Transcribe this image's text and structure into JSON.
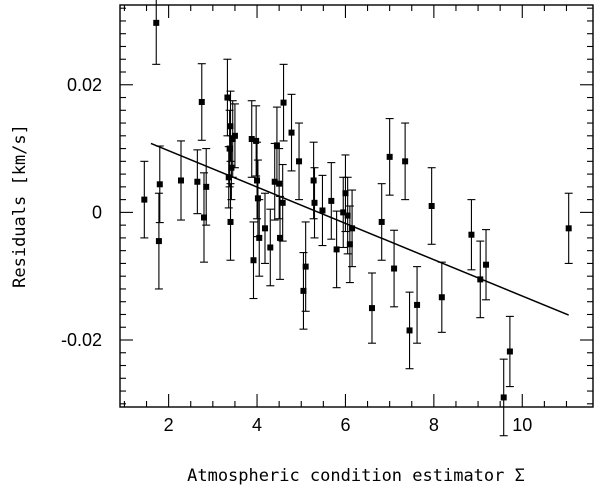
{
  "chart_data": {
    "type": "scatter",
    "title": "",
    "xlabel": "Atmospheric condition estimator Σ",
    "ylabel": "Residuals [km/s]",
    "xlim": [
      0.9,
      11.6
    ],
    "ylim": [
      -0.0305,
      0.0325
    ],
    "x_ticks": [
      2,
      4,
      6,
      8,
      10
    ],
    "x_tick_labels": [
      "2",
      "4",
      "6",
      "8",
      "10"
    ],
    "y_ticks": [
      -0.02,
      0,
      0.02
    ],
    "y_tick_labels": [
      "-0.02",
      "0",
      "0.02"
    ],
    "grid": false,
    "legend": "none",
    "fit_line": {
      "x": [
        1.6,
        11.05
      ],
      "y": [
        0.0108,
        -0.0161
      ]
    },
    "points": [
      {
        "x": 1.45,
        "y": 0.002,
        "err": 0.006
      },
      {
        "x": 1.72,
        "y": 0.0297,
        "err": 0.0065
      },
      {
        "x": 1.78,
        "y": -0.0045,
        "err": 0.0075
      },
      {
        "x": 1.8,
        "y": 0.0044,
        "err": 0.006
      },
      {
        "x": 2.28,
        "y": 0.005,
        "err": 0.0062
      },
      {
        "x": 2.65,
        "y": 0.0048,
        "err": 0.005
      },
      {
        "x": 2.75,
        "y": 0.0173,
        "err": 0.006
      },
      {
        "x": 2.8,
        "y": -0.0008,
        "err": 0.007
      },
      {
        "x": 2.85,
        "y": 0.004,
        "err": 0.006
      },
      {
        "x": 3.33,
        "y": 0.018,
        "err": 0.006
      },
      {
        "x": 3.36,
        "y": 0.0055,
        "err": 0.0048
      },
      {
        "x": 3.38,
        "y": 0.01,
        "err": 0.006
      },
      {
        "x": 3.4,
        "y": 0.0135,
        "err": 0.0055
      },
      {
        "x": 3.4,
        "y": -0.0015,
        "err": 0.006
      },
      {
        "x": 3.42,
        "y": 0.007,
        "err": 0.005
      },
      {
        "x": 3.45,
        "y": 0.0115,
        "err": 0.006
      },
      {
        "x": 3.5,
        "y": 0.012,
        "err": 0.005
      },
      {
        "x": 3.88,
        "y": 0.0115,
        "err": 0.006
      },
      {
        "x": 3.92,
        "y": -0.0075,
        "err": 0.006
      },
      {
        "x": 3.98,
        "y": 0.0112,
        "err": 0.0055
      },
      {
        "x": 4.0,
        "y": 0.005,
        "err": 0.006
      },
      {
        "x": 4.02,
        "y": 0.0022,
        "err": 0.006
      },
      {
        "x": 4.05,
        "y": -0.004,
        "err": 0.006
      },
      {
        "x": 4.18,
        "y": -0.0025,
        "err": 0.0055
      },
      {
        "x": 4.3,
        "y": -0.0055,
        "err": 0.006
      },
      {
        "x": 4.4,
        "y": 0.0048,
        "err": 0.006
      },
      {
        "x": 4.45,
        "y": 0.0105,
        "err": 0.006
      },
      {
        "x": 4.5,
        "y": 0.0045,
        "err": 0.0055
      },
      {
        "x": 4.52,
        "y": -0.004,
        "err": 0.0065
      },
      {
        "x": 4.58,
        "y": 0.0015,
        "err": 0.006
      },
      {
        "x": 4.6,
        "y": 0.0172,
        "err": 0.006
      },
      {
        "x": 4.78,
        "y": 0.0125,
        "err": 0.006
      },
      {
        "x": 4.95,
        "y": 0.008,
        "err": 0.006
      },
      {
        "x": 5.05,
        "y": -0.0123,
        "err": 0.006
      },
      {
        "x": 5.1,
        "y": -0.0085,
        "err": 0.007
      },
      {
        "x": 5.28,
        "y": 0.005,
        "err": 0.006
      },
      {
        "x": 5.3,
        "y": 0.0015,
        "err": 0.0055
      },
      {
        "x": 5.48,
        "y": 0.0003,
        "err": 0.0055
      },
      {
        "x": 5.68,
        "y": 0.0018,
        "err": 0.006
      },
      {
        "x": 5.8,
        "y": -0.0058,
        "err": 0.006
      },
      {
        "x": 5.95,
        "y": 0.0,
        "err": 0.0055
      },
      {
        "x": 6.0,
        "y": 0.003,
        "err": 0.006
      },
      {
        "x": 6.05,
        "y": -0.0005,
        "err": 0.006
      },
      {
        "x": 6.1,
        "y": -0.005,
        "err": 0.006
      },
      {
        "x": 6.15,
        "y": -0.0025,
        "err": 0.006
      },
      {
        "x": 6.6,
        "y": -0.015,
        "err": 0.0055
      },
      {
        "x": 6.82,
        "y": -0.0015,
        "err": 0.006
      },
      {
        "x": 7.0,
        "y": 0.0087,
        "err": 0.006
      },
      {
        "x": 7.1,
        "y": -0.0088,
        "err": 0.006
      },
      {
        "x": 7.35,
        "y": 0.008,
        "err": 0.006
      },
      {
        "x": 7.45,
        "y": -0.0185,
        "err": 0.006
      },
      {
        "x": 7.62,
        "y": -0.0145,
        "err": 0.006
      },
      {
        "x": 7.95,
        "y": 0.001,
        "err": 0.006
      },
      {
        "x": 8.18,
        "y": -0.0133,
        "err": 0.0055
      },
      {
        "x": 8.85,
        "y": -0.0035,
        "err": 0.0055
      },
      {
        "x": 9.05,
        "y": -0.0105,
        "err": 0.006
      },
      {
        "x": 9.18,
        "y": -0.0082,
        "err": 0.0055
      },
      {
        "x": 9.58,
        "y": -0.029,
        "err": 0.006
      },
      {
        "x": 9.72,
        "y": -0.0218,
        "err": 0.0055
      },
      {
        "x": 11.05,
        "y": -0.0025,
        "err": 0.0055
      }
    ]
  }
}
